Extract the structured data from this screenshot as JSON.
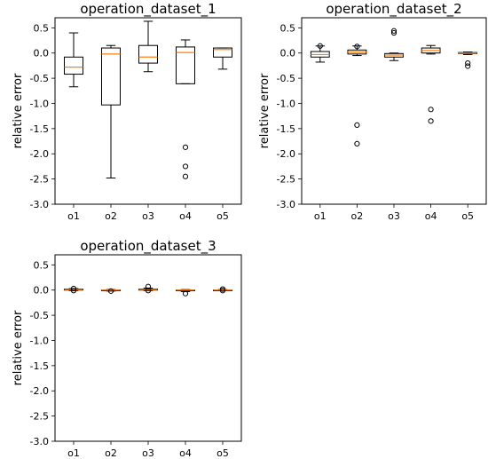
{
  "chart_data": [
    {
      "type": "box",
      "title": "operation_dataset_1",
      "xlabel": "",
      "ylabel": "relative error",
      "ylim": [
        -3.0,
        0.7
      ],
      "yticks": [
        "0.5",
        "0.0",
        "-0.5",
        "-1.0",
        "-1.5",
        "-2.0",
        "-2.5",
        "-3.0"
      ],
      "categories": [
        "o1",
        "o2",
        "o3",
        "o4",
        "o5"
      ],
      "boxes": [
        {
          "whislo": -0.67,
          "q1": -0.42,
          "med": -0.28,
          "q3": -0.08,
          "whishi": 0.4,
          "fliers": []
        },
        {
          "whislo": -2.48,
          "q1": -1.03,
          "med": -0.02,
          "q3": 0.1,
          "whishi": 0.15,
          "fliers": []
        },
        {
          "whislo": -0.37,
          "q1": -0.2,
          "med": -0.08,
          "q3": 0.15,
          "whishi": 0.63,
          "fliers": []
        },
        {
          "whislo": -0.61,
          "q1": -0.61,
          "med": 0.01,
          "q3": 0.12,
          "whishi": 0.26,
          "fliers": [
            -1.87,
            -2.25,
            -2.45
          ]
        },
        {
          "whislo": -0.32,
          "q1": -0.08,
          "med": 0.07,
          "q3": 0.1,
          "whishi": 0.1,
          "fliers": []
        }
      ]
    },
    {
      "type": "box",
      "title": "operation_dataset_2",
      "xlabel": "",
      "ylabel": "relative error",
      "ylim": [
        -3.0,
        0.7
      ],
      "yticks": [
        "0.5",
        "0.0",
        "-0.5",
        "-1.0",
        "-1.5",
        "-2.0",
        "-2.5",
        "-3.0"
      ],
      "categories": [
        "o1",
        "o2",
        "o3",
        "o4",
        "o5"
      ],
      "boxes": [
        {
          "whislo": -0.18,
          "q1": -0.08,
          "med": -0.03,
          "q3": 0.03,
          "whishi": 0.14,
          "fliers": [
            0.14
          ]
        },
        {
          "whislo": -0.05,
          "q1": -0.02,
          "med": 0.02,
          "q3": 0.06,
          "whishi": 0.14,
          "fliers": [
            0.13,
            -1.43,
            -1.8
          ]
        },
        {
          "whislo": -0.15,
          "q1": -0.08,
          "med": -0.04,
          "q3": -0.01,
          "whishi": 0.0,
          "fliers": [
            0.44,
            0.4
          ]
        },
        {
          "whislo": -0.02,
          "q1": 0.0,
          "med": 0.05,
          "q3": 0.1,
          "whishi": 0.15,
          "fliers": [
            -1.12,
            -1.35
          ]
        },
        {
          "whislo": -0.03,
          "q1": -0.01,
          "med": 0.0,
          "q3": 0.01,
          "whishi": 0.02,
          "fliers": [
            -0.2,
            -0.26
          ]
        }
      ]
    },
    {
      "type": "box",
      "title": "operation_dataset_3",
      "xlabel": "",
      "ylabel": "relative error",
      "ylim": [
        -3.0,
        0.7
      ],
      "yticks": [
        "0.5",
        "0.0",
        "-0.5",
        "-1.0",
        "-1.5",
        "-2.0",
        "-2.5",
        "-3.0"
      ],
      "categories": [
        "o1",
        "o2",
        "o3",
        "o4",
        "o5"
      ],
      "boxes": [
        {
          "whislo": -0.01,
          "q1": 0.0,
          "med": 0.01,
          "q3": 0.02,
          "whishi": 0.03,
          "fliers": [
            0.03,
            -0.01
          ]
        },
        {
          "whislo": -0.02,
          "q1": -0.01,
          "med": 0.0,
          "q3": 0.0,
          "whishi": 0.01,
          "fliers": [
            -0.02
          ]
        },
        {
          "whislo": -0.01,
          "q1": 0.0,
          "med": 0.01,
          "q3": 0.02,
          "whishi": 0.04,
          "fliers": [
            0.07,
            -0.01
          ]
        },
        {
          "whislo": -0.03,
          "q1": -0.01,
          "med": 0.0,
          "q3": 0.0,
          "whishi": 0.01,
          "fliers": [
            -0.07
          ]
        },
        {
          "whislo": -0.01,
          "q1": 0.0,
          "med": 0.0,
          "q3": 0.0,
          "whishi": 0.01,
          "fliers": [
            0.02,
            -0.01
          ]
        }
      ]
    }
  ],
  "colors": {
    "median": "#ff7f0e",
    "box": "#000000",
    "axes": "#000000",
    "background": "#ffffff"
  }
}
